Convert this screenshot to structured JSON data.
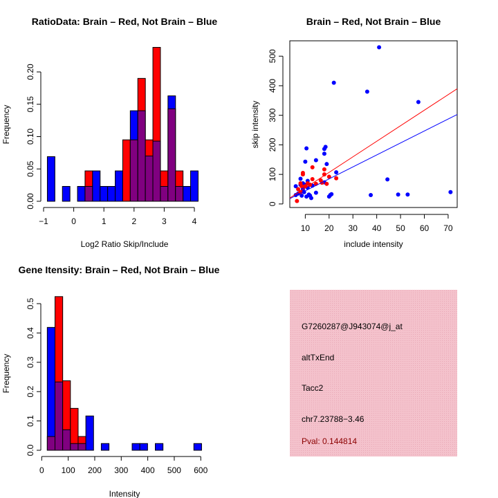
{
  "chart_data": [
    {
      "type": "bar",
      "subtype": "overlaid-histogram",
      "title": "RatioData: Brain – Red, Not Brain – Blue",
      "xlabel": "Log2 Ratio Skip/Include",
      "ylabel": "Frequency",
      "xlim": [
        -1,
        4.2
      ],
      "ylim": [
        0,
        0.24
      ],
      "xticks": [
        "−1",
        "0",
        "1",
        "2",
        "3",
        "4"
      ],
      "xtick_values": [
        -1,
        0,
        1,
        2,
        3,
        4
      ],
      "yticks": [
        "0.00",
        "0.05",
        "0.10",
        "0.15",
        "0.20"
      ],
      "ytick_values": [
        0,
        0.05,
        0.1,
        0.15,
        0.2
      ],
      "bin_start": -0.875,
      "bin_width": 0.25,
      "series": [
        {
          "name": "Brain",
          "color": "#ff0000",
          "values": [
            0,
            0,
            0,
            0,
            0,
            0.047,
            0,
            0,
            0,
            0,
            0.095,
            0.095,
            0.19,
            0.095,
            0.238,
            0.047,
            0.143,
            0.047,
            0,
            0
          ]
        },
        {
          "name": "Not Brain",
          "color": "#0000ff",
          "values": [
            0.069,
            0,
            0.023,
            0,
            0.023,
            0.023,
            0.047,
            0.023,
            0.023,
            0.047,
            0,
            0.14,
            0.14,
            0.07,
            0.093,
            0.023,
            0.163,
            0.023,
            0.023,
            0.047
          ]
        }
      ],
      "overlap_color": "#800080"
    },
    {
      "type": "scatter",
      "title": "Brain – Red, Not Brain – Blue",
      "xlabel": "include intensity",
      "ylabel": "skip intensity",
      "xlim": [
        3.5,
        73.8
      ],
      "ylim": [
        -12,
        552
      ],
      "xticks": [
        "10",
        "20",
        "30",
        "40",
        "50",
        "60",
        "70"
      ],
      "xtick_values": [
        10,
        20,
        30,
        40,
        50,
        60,
        70
      ],
      "yticks": [
        "0",
        "100",
        "200",
        "300",
        "400",
        "500"
      ],
      "ytick_values": [
        0,
        100,
        200,
        300,
        400,
        500
      ],
      "series": [
        {
          "name": "Not Brain",
          "color": "#0000ff",
          "points": [
            [
              41,
              530
            ],
            [
              22,
              410
            ],
            [
              36,
              380
            ],
            [
              57.5,
              345
            ],
            [
              44.5,
              83
            ],
            [
              37.5,
              30
            ],
            [
              49,
              32
            ],
            [
              53,
              32
            ],
            [
              71,
              40
            ],
            [
              10.5,
              188
            ],
            [
              10,
              143
            ],
            [
              14.5,
              148
            ],
            [
              18,
              186
            ],
            [
              18.5,
              193
            ],
            [
              18,
              170
            ],
            [
              19,
              135
            ],
            [
              23,
              107
            ],
            [
              18,
              73
            ],
            [
              20,
              25
            ],
            [
              20.5,
              30
            ],
            [
              21,
              33
            ],
            [
              6,
              60
            ],
            [
              6,
              30
            ],
            [
              8,
              85
            ],
            [
              8,
              65
            ],
            [
              8.5,
              28
            ],
            [
              9,
              50
            ],
            [
              9,
              70
            ],
            [
              9.5,
              40
            ],
            [
              10,
              65
            ],
            [
              10.5,
              25
            ],
            [
              11,
              78
            ],
            [
              11,
              55
            ],
            [
              11.5,
              32
            ],
            [
              12,
              28
            ],
            [
              12.5,
              20
            ],
            [
              13,
              62
            ],
            [
              14.5,
              38
            ],
            [
              7,
              35
            ],
            [
              10,
              60
            ],
            [
              12,
              65
            ]
          ],
          "fit": {
            "intercept": 3.8,
            "slope": 4.05
          }
        },
        {
          "name": "Brain",
          "color": "#ff0000",
          "points": [
            [
              6.5,
              10
            ],
            [
              7,
              50
            ],
            [
              8,
              70
            ],
            [
              8.5,
              60
            ],
            [
              9,
              100
            ],
            [
              9,
              105
            ],
            [
              10,
              60
            ],
            [
              12,
              65
            ],
            [
              13,
              124
            ],
            [
              13,
              84
            ],
            [
              14.5,
              68
            ],
            [
              16.5,
              80
            ],
            [
              17,
              72
            ],
            [
              18,
              117
            ],
            [
              18,
              100
            ],
            [
              19,
              68
            ],
            [
              20,
              92
            ],
            [
              23,
              87
            ],
            [
              11,
              70
            ],
            [
              8,
              40
            ]
          ],
          "fit": {
            "intercept": 1.6,
            "slope": 5.26
          }
        }
      ]
    },
    {
      "type": "bar",
      "subtype": "overlaid-histogram",
      "title": "Gene Itensity: Brain – Red, Not Brain – Blue",
      "xlabel": "Intensity",
      "ylabel": "Frequency",
      "xlim": [
        0,
        620
      ],
      "ylim": [
        0,
        0.52
      ],
      "xticks": [
        "0",
        "100",
        "200",
        "300",
        "400",
        "500",
        "600"
      ],
      "xtick_values": [
        0,
        100,
        200,
        300,
        400,
        500,
        600
      ],
      "yticks": [
        "0.0",
        "0.1",
        "0.2",
        "0.3",
        "0.4",
        "0.5"
      ],
      "ytick_values": [
        0,
        0.1,
        0.2,
        0.3,
        0.4,
        0.5
      ],
      "bin_start": 21,
      "bin_width": 29.1,
      "series": [
        {
          "name": "Brain",
          "color": "#ff0000",
          "values": [
            0.047,
            0.524,
            0.237,
            0.143,
            0.047,
            0,
            0,
            0,
            0,
            0,
            0,
            0,
            0,
            0,
            0,
            0,
            0,
            0,
            0,
            0
          ]
        },
        {
          "name": "Not Brain",
          "color": "#0000ff",
          "values": [
            0.419,
            0.233,
            0.07,
            0.023,
            0.023,
            0.117,
            0,
            0.023,
            0,
            0,
            0,
            0.023,
            0.023,
            0,
            0.023,
            0,
            0,
            0,
            0,
            0.023
          ]
        }
      ],
      "overlap_color": "#800080"
    }
  ],
  "info_panel": {
    "probe_id": "G7260287@J943074@j_at",
    "event_type": "altTxEnd",
    "gene": "Tacc2",
    "location": "chr7.23788−3.46",
    "pval": "Pval: 0.144814",
    "background_color": "#f4c2cc",
    "pval_color": "#8b0000"
  }
}
